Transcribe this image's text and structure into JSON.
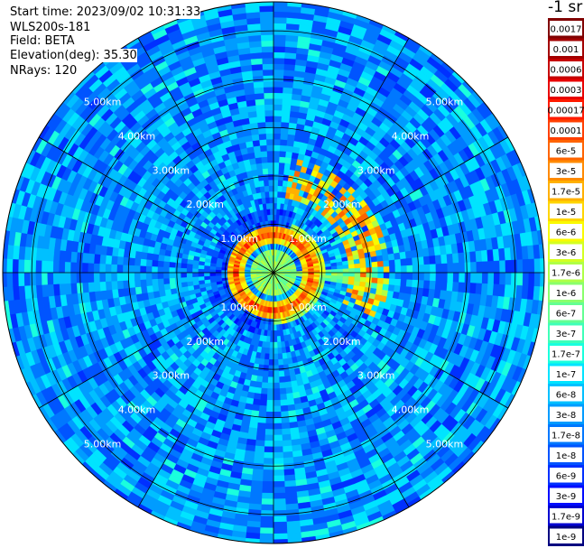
{
  "header": {
    "start_time": "Start time: 2023/09/02 10:31:33",
    "instrument": "WLS200s-181",
    "field": "Field: BETA",
    "elevation": "Elevation(deg): 35.30",
    "nrays": "NRays: 120"
  },
  "colorbar": {
    "unit_label": "-1 sr",
    "labels": [
      "0.0017",
      "0.001",
      "0.0006",
      "0.0003",
      "0.00017",
      "0.0001",
      "6e-5",
      "3e-5",
      "1.7e-5",
      "1e-5",
      "6e-6",
      "3e-6",
      "1.7e-6",
      "1e-6",
      "6e-7",
      "3e-7",
      "1.7e-7",
      "1e-7",
      "6e-8",
      "3e-8",
      "1.7e-8",
      "1e-8",
      "6e-9",
      "3e-9",
      "1.7e-9",
      "1e-9"
    ],
    "colors": [
      "#800000",
      "#a30000",
      "#c60000",
      "#e80000",
      "#ff1a00",
      "#ff3f00",
      "#ff6400",
      "#ff8a00",
      "#ffb000",
      "#ffd500",
      "#fafa00",
      "#d4ff22",
      "#b0ff46",
      "#8aff6c",
      "#64ff92",
      "#3fffb8",
      "#1affdd",
      "#00e4ff",
      "#00c0ff",
      "#009cff",
      "#0078ff",
      "#0054ff",
      "#0030ff",
      "#000cff",
      "#0000d0",
      "#000080"
    ]
  },
  "chart_data": {
    "type": "heatmap",
    "projection": "polar PPI scan",
    "field": "BETA",
    "elevation_deg": 35.3,
    "nrays": 120,
    "range_ring_labels": [
      "1.00km",
      "2.00km",
      "3.00km",
      "4.00km",
      "5.00km"
    ],
    "range_rings_km": [
      1,
      2,
      3,
      4,
      5
    ],
    "max_range_km": 5.6,
    "spoke_angles_deg": [
      0,
      30,
      60,
      90,
      120,
      150,
      180,
      210,
      240,
      270,
      300,
      330
    ],
    "color_scale": "log",
    "value_range": [
      1e-09,
      0.0017
    ],
    "features": {
      "background_level": 3e-08,
      "inner_ring": {
        "radius_km": 0.8,
        "level": 0.0001
      },
      "arc": {
        "radius_km": [
          1.6,
          2.0
        ],
        "level": 1e-05
      },
      "east_sector": {
        "level": 6e-07
      }
    }
  }
}
